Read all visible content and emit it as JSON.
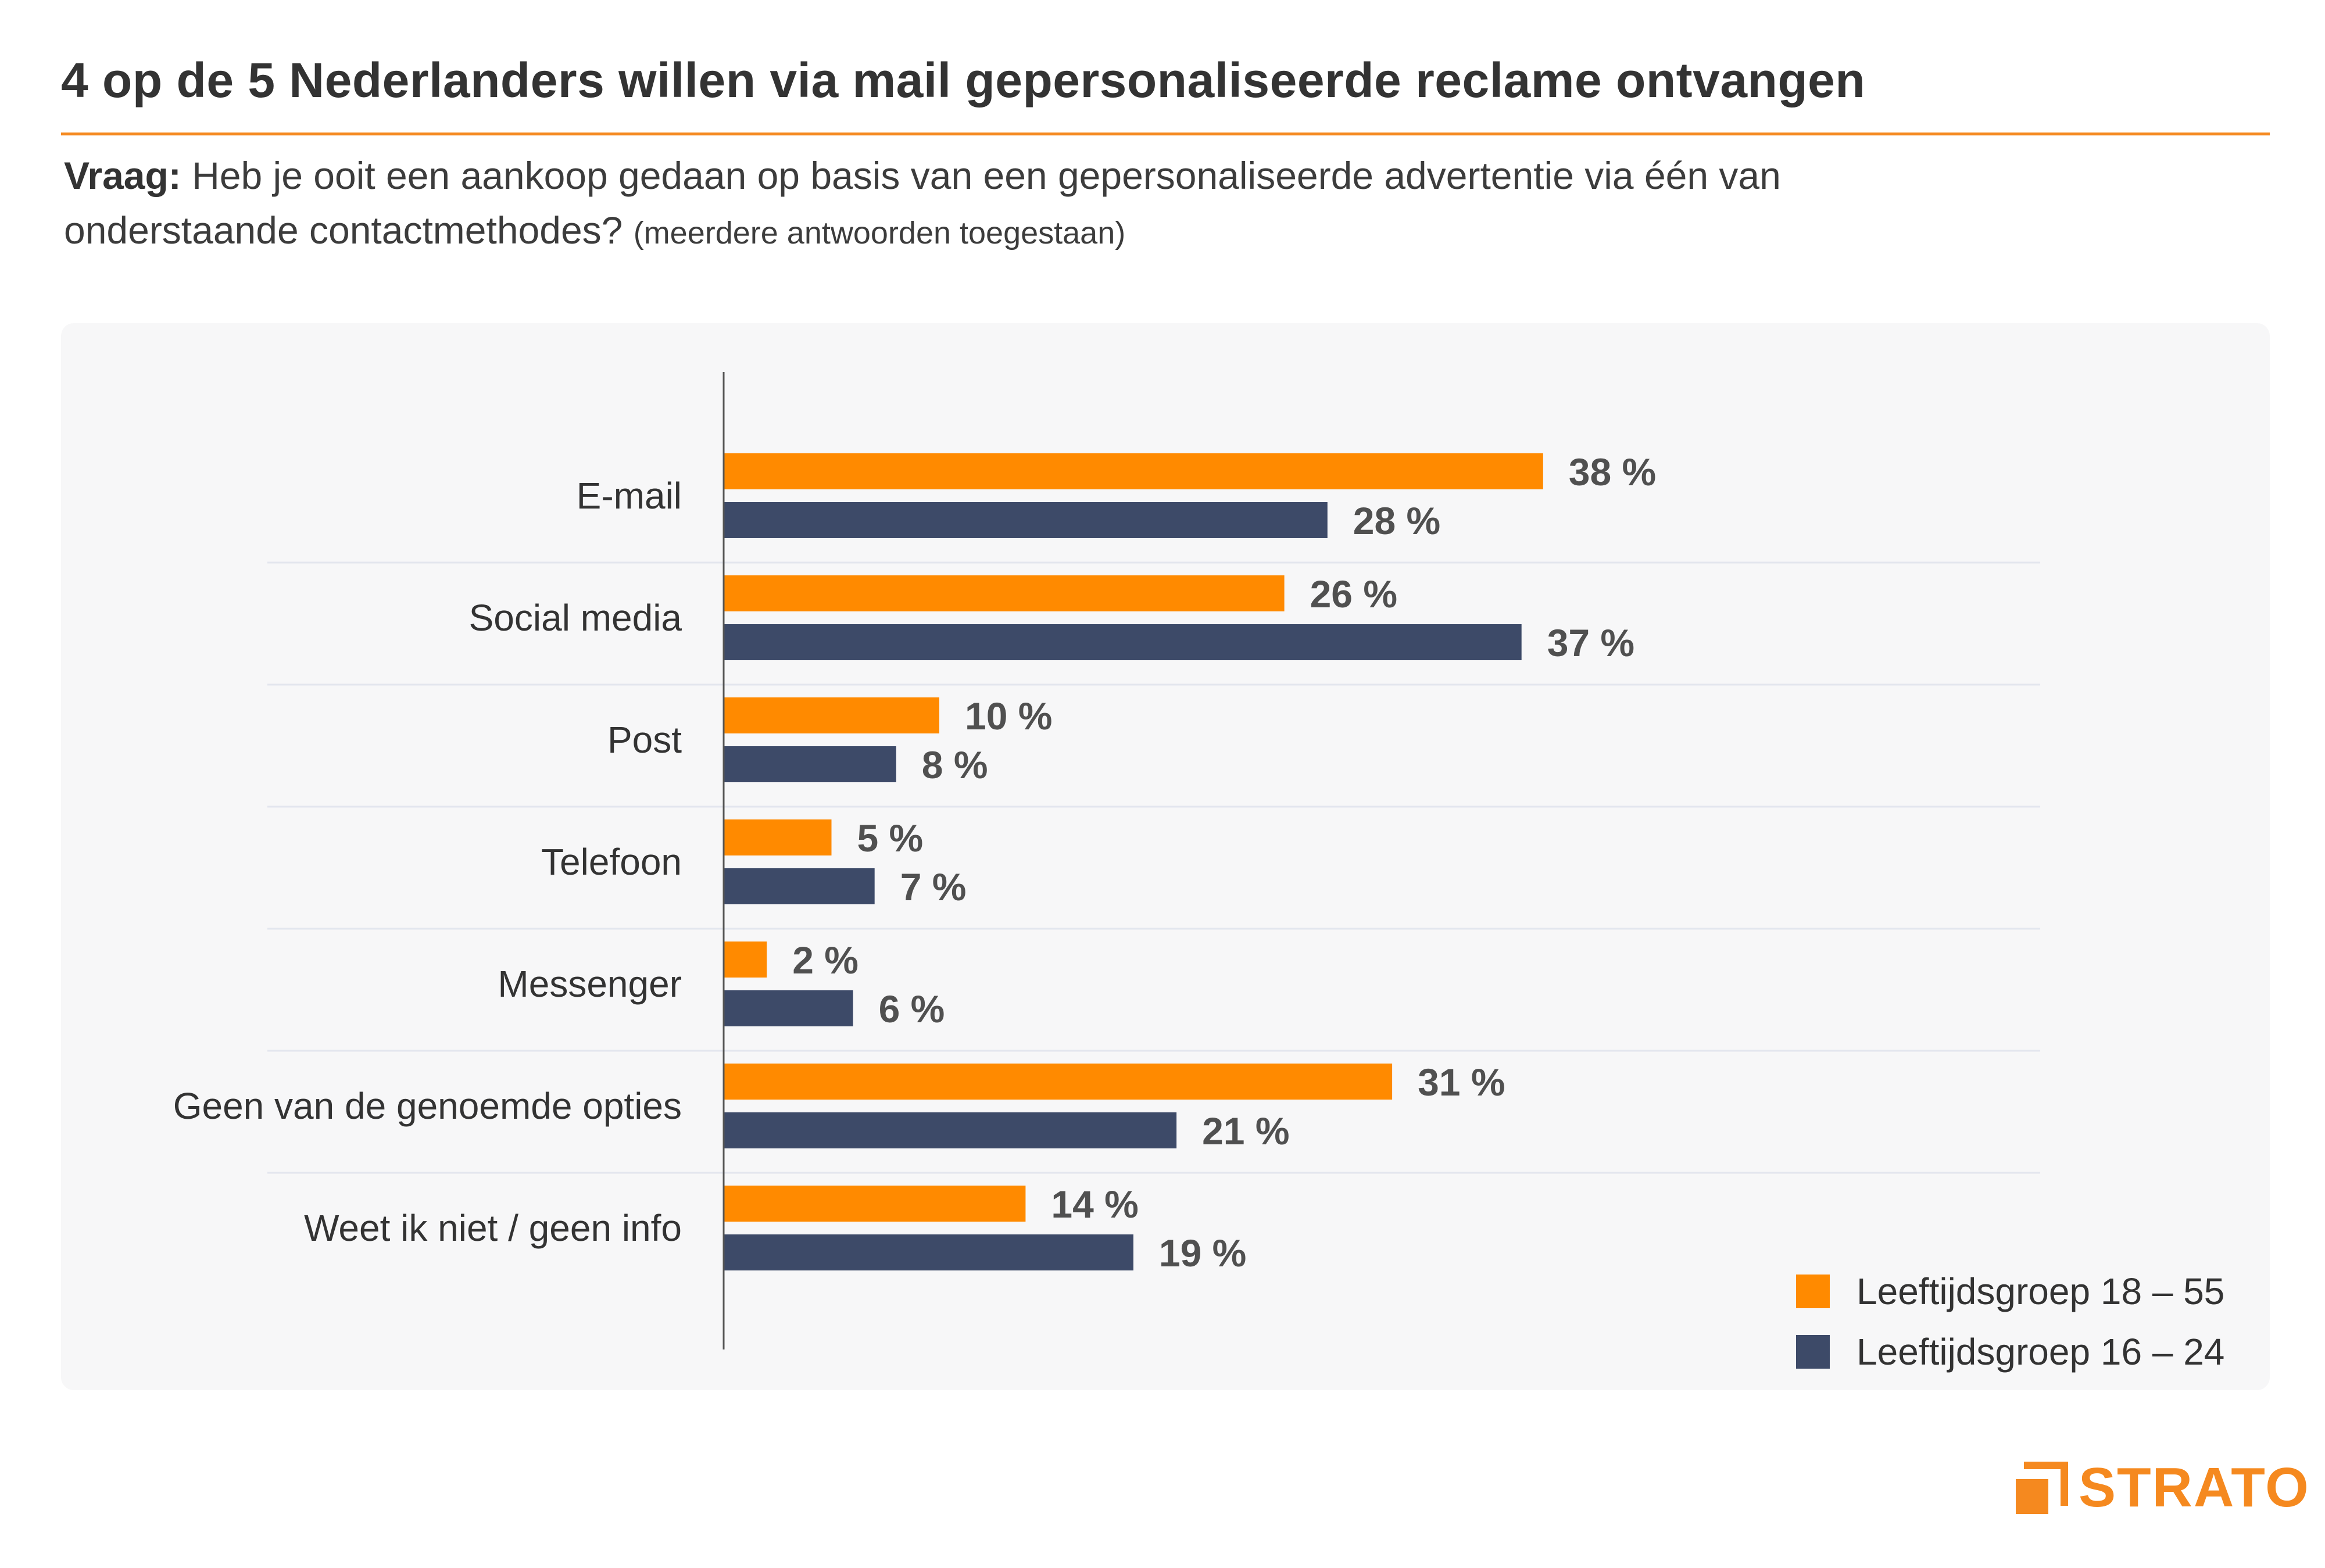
{
  "title": "4 op de 5 Nederlanders willen via mail gepersonaliseerde reclame ontvangen",
  "question": {
    "label": "Vraag:",
    "text": "Heb je ooit een aankoop gedaan op basis van een gepersonaliseerde advertentie via één van onderstaande contactmethodes?",
    "note": "(meerdere antwoorden toegestaan)"
  },
  "colors": {
    "accent": "#f5891f",
    "series1": "#ff8a00",
    "series2": "#3d4a68"
  },
  "chart_data": {
    "type": "bar",
    "orientation": "horizontal",
    "title": "4 op de 5 Nederlanders willen via mail gepersonaliseerde reclame ontvangen",
    "categories": [
      "E-mail",
      "Social media",
      "Post",
      "Telefoon",
      "Messenger",
      "Geen van de genoemde opties",
      "Weet ik niet / geen info"
    ],
    "series": [
      {
        "name": "Leeftijdsgroep 18 – 55",
        "values": [
          38,
          26,
          10,
          5,
          2,
          31,
          14
        ],
        "labels": [
          "38 %",
          "26 %",
          "10 %",
          "5 %",
          "2 %",
          "31 %",
          "14 %"
        ]
      },
      {
        "name": "Leeftijdsgroep 16 – 24",
        "values": [
          28,
          37,
          8,
          7,
          6,
          21,
          19
        ],
        "labels": [
          "28 %",
          "37 %",
          "8 %",
          "7 %",
          "6 %",
          "21 %",
          "19 %"
        ]
      }
    ],
    "xlim": [
      0,
      100
    ],
    "unit": "%",
    "legend_position": "bottom-right"
  },
  "legend": {
    "items": [
      {
        "label": "Leeftijdsgroep 18 – 55"
      },
      {
        "label": "Leeftijdsgroep 16 – 24"
      }
    ]
  },
  "brand": {
    "name": "STRATO"
  }
}
